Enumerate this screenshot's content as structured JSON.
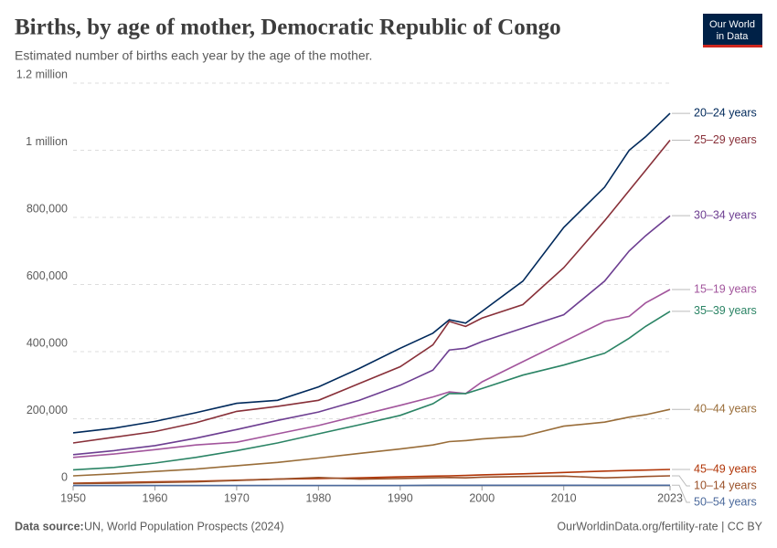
{
  "chart_data": {
    "type": "line",
    "title": "Births, by age of mother, Democratic Republic of Congo",
    "subtitle": "Estimated number of births each year by the age of the mother.",
    "source_label": "Data source:",
    "source": "UN, World Population Prospects (2024)",
    "footer": "OurWorldinData.org/fertility-rate | CC BY",
    "logo": [
      "Our World",
      "in Data"
    ],
    "x": [
      1950,
      1955,
      1960,
      1965,
      1970,
      1975,
      1980,
      1985,
      1990,
      1994,
      1996,
      1998,
      2000,
      2005,
      2010,
      2015,
      2018,
      2020,
      2023
    ],
    "xlim": [
      1950,
      2023
    ],
    "xticks": [
      1950,
      1960,
      1970,
      1980,
      1990,
      2000,
      2010,
      2023
    ],
    "ylim": [
      0,
      1200000
    ],
    "yticks": [
      0,
      {
        "value": 200000,
        "label": "200,000"
      },
      {
        "value": 400000,
        "label": "400,000"
      },
      {
        "value": 600000,
        "label": "600,000"
      },
      {
        "value": 800000,
        "label": "800,000"
      },
      {
        "value": 1000000,
        "label": "1 million"
      },
      {
        "value": 1200000,
        "label": "1.2 million"
      }
    ],
    "grid": true,
    "series": [
      {
        "name": "20–24 years",
        "color": "#00295b",
        "values": [
          158000,
          172000,
          192000,
          218000,
          246000,
          255000,
          295000,
          350000,
          410000,
          455000,
          495000,
          485000,
          520000,
          610000,
          770000,
          890000,
          1000000,
          1040000,
          1110000
        ]
      },
      {
        "name": "25–29 years",
        "color": "#883039",
        "values": [
          128000,
          145000,
          162000,
          188000,
          222000,
          237000,
          255000,
          305000,
          355000,
          420000,
          490000,
          475000,
          500000,
          540000,
          650000,
          790000,
          880000,
          940000,
          1030000
        ]
      },
      {
        "name": "30–34 years",
        "color": "#6d3e91",
        "values": [
          93000,
          105000,
          120000,
          142000,
          168000,
          195000,
          220000,
          255000,
          300000,
          345000,
          405000,
          410000,
          430000,
          470000,
          510000,
          610000,
          700000,
          745000,
          805000
        ]
      },
      {
        "name": "15–19 years",
        "color": "#a2559c",
        "values": [
          85000,
          95000,
          108000,
          122000,
          130000,
          155000,
          180000,
          210000,
          240000,
          265000,
          280000,
          275000,
          310000,
          370000,
          430000,
          490000,
          505000,
          545000,
          585000
        ]
      },
      {
        "name": "35–39 years",
        "color": "#2b8465",
        "values": [
          48000,
          55000,
          68000,
          85000,
          105000,
          128000,
          155000,
          182000,
          210000,
          245000,
          275000,
          275000,
          290000,
          330000,
          360000,
          395000,
          440000,
          475000,
          520000
        ]
      },
      {
        "name": "40–44 years",
        "color": "#996d39",
        "values": [
          30000,
          36000,
          43000,
          50000,
          60000,
          70000,
          83000,
          97000,
          110000,
          122000,
          132000,
          135000,
          140000,
          148000,
          178000,
          190000,
          205000,
          212000,
          228000
        ]
      },
      {
        "name": "45–49 years",
        "color": "#b13507",
        "values": [
          8000,
          10000,
          12000,
          14000,
          17000,
          20000,
          22000,
          24000,
          27000,
          29000,
          30000,
          31000,
          33000,
          36000,
          40000,
          44000,
          46000,
          47000,
          49000
        ]
      },
      {
        "name": "10–14 years",
        "color": "#9a5129",
        "values": [
          7000,
          8000,
          10000,
          12000,
          16000,
          20000,
          25000,
          20000,
          22000,
          24000,
          25000,
          24000,
          26000,
          28000,
          29000,
          24000,
          26000,
          28000,
          30000
        ]
      },
      {
        "name": "50–54 years",
        "color": "#4c6a9c",
        "values": [
          1000,
          1000,
          1000,
          1000,
          1000,
          1000,
          1000,
          1000,
          1000,
          2000,
          2000,
          2000,
          2000,
          2000,
          2000,
          2000,
          2000,
          2000,
          2000
        ]
      }
    ]
  }
}
